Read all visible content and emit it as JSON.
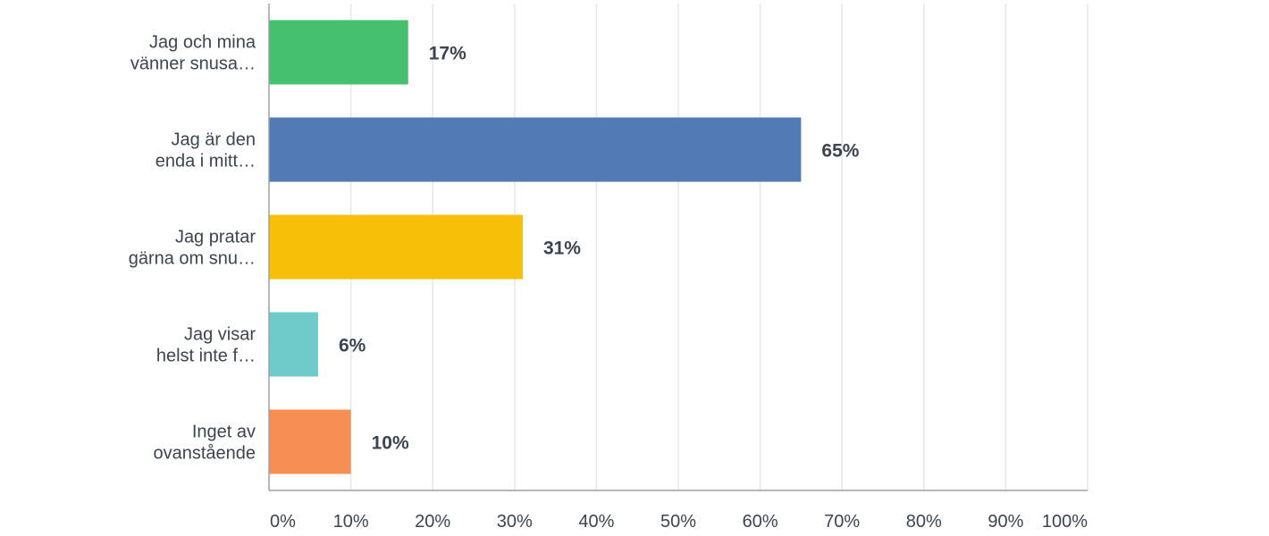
{
  "chart_data": {
    "type": "bar",
    "orientation": "horizontal",
    "categories": [
      [
        "Jag och mina",
        "vänner snusa…"
      ],
      [
        "Jag är den",
        "enda i mitt…"
      ],
      [
        "Jag pratar",
        "gärna om snu…"
      ],
      [
        "Jag visar",
        "helst inte f…"
      ],
      [
        "Inget av",
        "ovanstående"
      ]
    ],
    "values": [
      17,
      65,
      31,
      6,
      10
    ],
    "value_labels": [
      "17%",
      "65%",
      "31%",
      "6%",
      "10%"
    ],
    "colors": [
      "#44c06e",
      "#527bb5",
      "#f7bf07",
      "#6fcaca",
      "#f78e53"
    ],
    "xlim": [
      0,
      100
    ],
    "xticks": [
      0,
      10,
      20,
      30,
      40,
      50,
      60,
      70,
      80,
      90,
      100
    ],
    "xtick_labels": [
      "0%",
      "10%",
      "20%",
      "30%",
      "40%",
      "50%",
      "60%",
      "70%",
      "80%",
      "90%",
      "100%"
    ],
    "grid": true,
    "legend": "none"
  }
}
